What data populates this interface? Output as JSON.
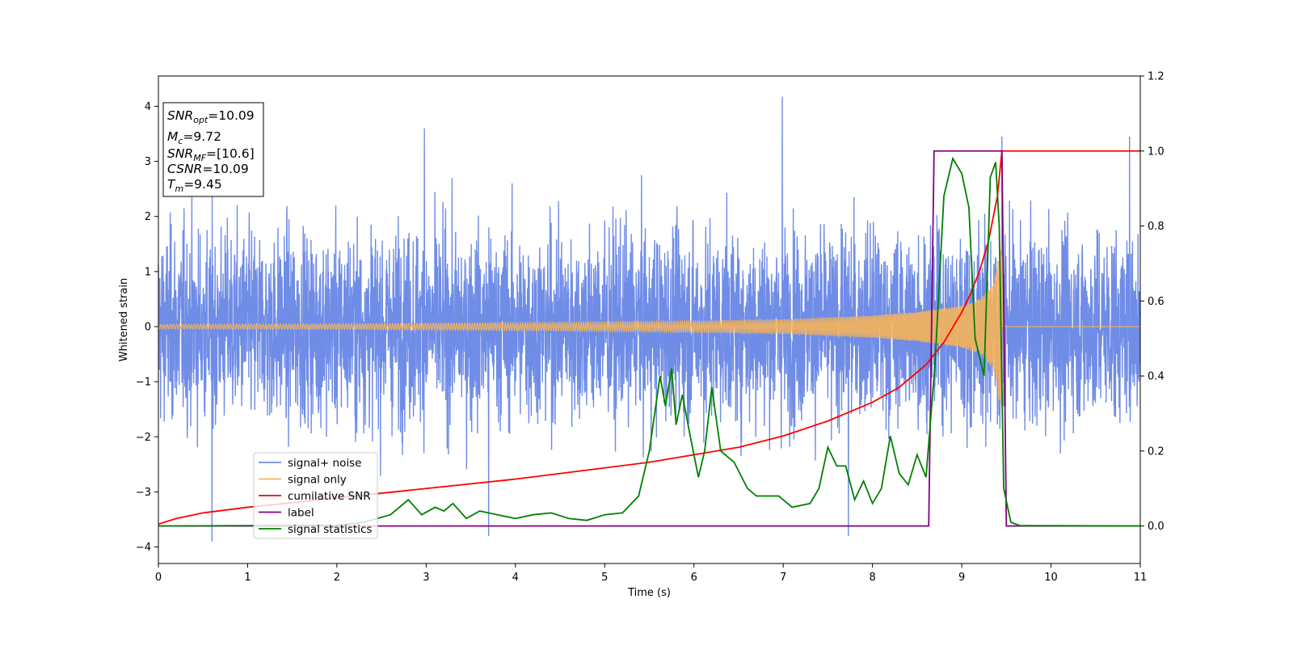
{
  "chart_data": {
    "type": "line",
    "xlabel": "Time (s)",
    "ylabel": "Whitened strain",
    "xlim": [
      0,
      11
    ],
    "ylim": [
      -4.3,
      4.55
    ],
    "y2lim": [
      -0.1,
      1.2
    ],
    "x_ticks": [
      0,
      1,
      2,
      3,
      4,
      5,
      6,
      7,
      8,
      9,
      10,
      11
    ],
    "y_ticks": [
      -4,
      -3,
      -2,
      -1,
      0,
      1,
      2,
      3,
      4
    ],
    "y2_ticks": [
      "0.0",
      "0.2",
      "0.4",
      "0.6",
      "0.8",
      "1.0",
      "1.2"
    ],
    "grid": false,
    "legend_position": "lower-left",
    "annotation": {
      "lines": [
        {
          "label": "SNR",
          "sub": "opt",
          "value": "=10.09"
        },
        {
          "label": "M",
          "sub": "c",
          "value": "=9.72"
        },
        {
          "label": "SNR",
          "sub": "MF",
          "value": "=[10.6]"
        },
        {
          "label": "CSNR",
          "sub": "",
          "value": "=10.09"
        },
        {
          "label": "T",
          "sub": "m",
          "value": "=9.45"
        }
      ]
    },
    "series": [
      {
        "name": "signal+ noise",
        "axis": "left",
        "color": "#6f8ce6",
        "style": "dense noise, amplitude roughly ±2.5 with spikes to ±4",
        "notable_peaks": [
          [
            0.6,
            -3.9
          ],
          [
            2.98,
            3.6
          ],
          [
            3.7,
            -3.8
          ],
          [
            6.99,
            4.17
          ],
          [
            7.73,
            -3.8
          ],
          [
            9.45,
            3.45
          ],
          [
            10.88,
            3.45
          ]
        ]
      },
      {
        "name": "signal only",
        "axis": "left",
        "color": "#f5b25a",
        "style": "chirp, amplitude growing toward merger then zero",
        "envelope": [
          [
            0,
            0.04
          ],
          [
            2,
            0.05
          ],
          [
            4,
            0.07
          ],
          [
            6,
            0.1
          ],
          [
            7,
            0.13
          ],
          [
            8,
            0.2
          ],
          [
            8.5,
            0.27
          ],
          [
            9,
            0.38
          ],
          [
            9.2,
            0.5
          ],
          [
            9.35,
            0.75
          ],
          [
            9.45,
            1.6
          ],
          [
            9.46,
            0
          ],
          [
            11,
            0
          ]
        ]
      },
      {
        "name": "cumilative SNR",
        "axis": "right",
        "color": "#ff0000",
        "x": [
          0,
          0.2,
          0.5,
          1,
          1.5,
          2,
          3,
          4,
          5,
          5.5,
          6,
          6.5,
          7,
          7.5,
          8,
          8.3,
          8.6,
          8.8,
          9,
          9.1,
          9.2,
          9.3,
          9.4,
          9.45,
          11
        ],
        "y": [
          0.005,
          0.02,
          0.035,
          0.05,
          0.062,
          0.075,
          0.1,
          0.125,
          0.155,
          0.17,
          0.19,
          0.21,
          0.24,
          0.28,
          0.33,
          0.37,
          0.43,
          0.49,
          0.57,
          0.62,
          0.68,
          0.76,
          0.88,
          1.0,
          1.0
        ]
      },
      {
        "name": "label",
        "axis": "right",
        "color": "#800080",
        "x": [
          0,
          8.63,
          8.69,
          9.45,
          9.5,
          11
        ],
        "y": [
          0,
          0,
          1,
          1,
          0,
          0
        ]
      },
      {
        "name": "signal statistics",
        "axis": "right",
        "color": "#008000",
        "x": [
          0,
          1,
          2,
          2.3,
          2.6,
          2.8,
          2.95,
          3.1,
          3.2,
          3.3,
          3.45,
          3.6,
          3.8,
          4,
          4.2,
          4.4,
          4.6,
          4.8,
          5,
          5.2,
          5.38,
          5.5,
          5.62,
          5.68,
          5.75,
          5.8,
          5.87,
          5.95,
          6.05,
          6.12,
          6.2,
          6.3,
          6.45,
          6.6,
          6.7,
          6.8,
          6.95,
          7.1,
          7.3,
          7.4,
          7.5,
          7.6,
          7.7,
          7.8,
          7.9,
          8,
          8.1,
          8.2,
          8.3,
          8.4,
          8.5,
          8.6,
          8.7,
          8.8,
          8.9,
          9.0,
          9.08,
          9.15,
          9.25,
          9.32,
          9.38,
          9.42,
          9.47,
          9.55,
          9.65,
          11
        ],
        "y": [
          0,
          0.001,
          0.002,
          0.01,
          0.03,
          0.07,
          0.03,
          0.05,
          0.04,
          0.06,
          0.02,
          0.04,
          0.03,
          0.02,
          0.03,
          0.035,
          0.02,
          0.015,
          0.03,
          0.035,
          0.08,
          0.2,
          0.4,
          0.32,
          0.42,
          0.27,
          0.35,
          0.25,
          0.13,
          0.2,
          0.37,
          0.2,
          0.17,
          0.1,
          0.08,
          0.08,
          0.08,
          0.05,
          0.06,
          0.1,
          0.21,
          0.16,
          0.16,
          0.07,
          0.12,
          0.06,
          0.1,
          0.24,
          0.14,
          0.11,
          0.19,
          0.13,
          0.43,
          0.88,
          0.98,
          0.94,
          0.85,
          0.5,
          0.4,
          0.93,
          0.97,
          0.8,
          0.1,
          0.01,
          0.001,
          0
        ]
      }
    ]
  }
}
